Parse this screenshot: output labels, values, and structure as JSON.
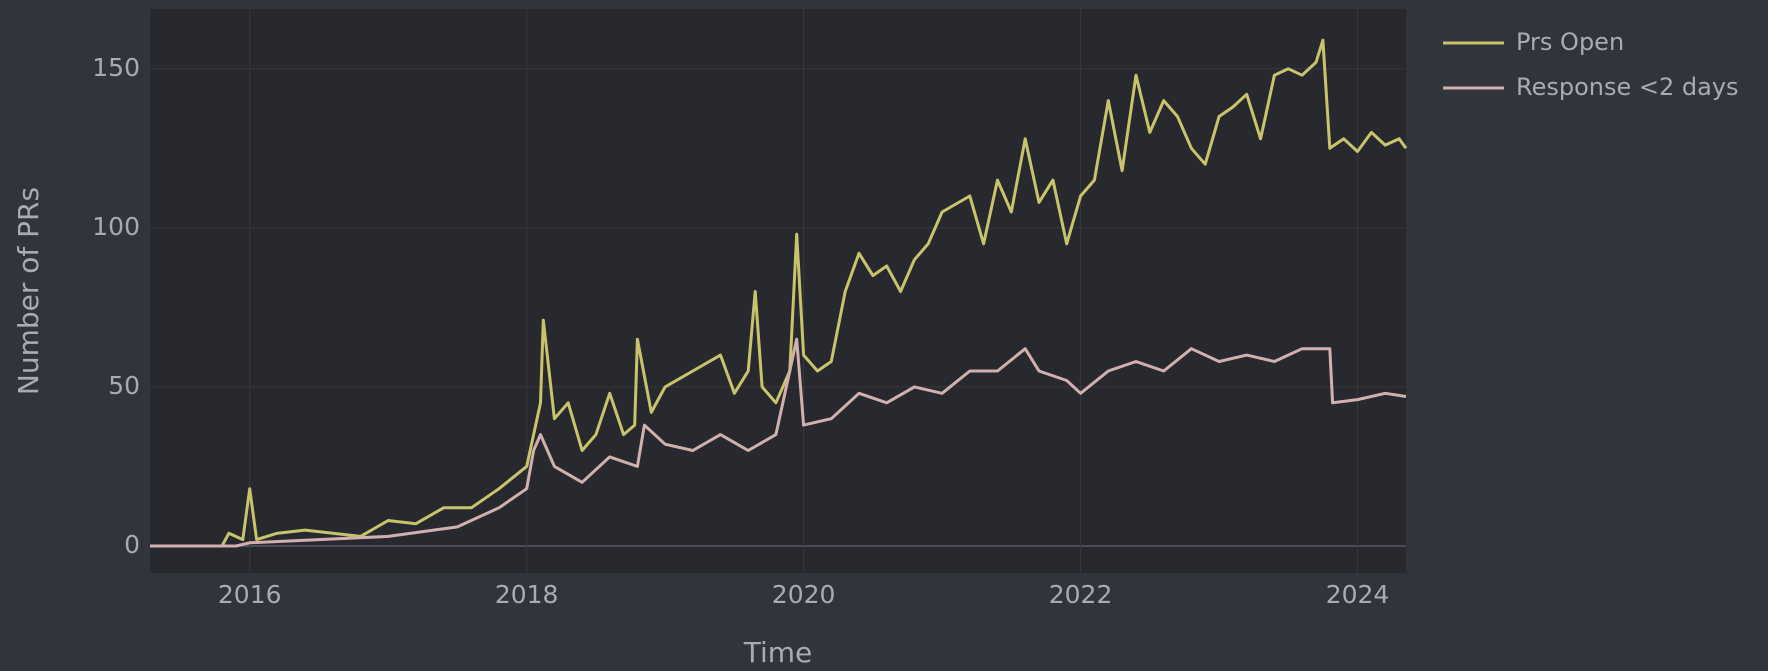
{
  "chart_data": {
    "type": "line",
    "xlabel": "Time",
    "ylabel": "Number of PRs",
    "xlim": [
      2015.28,
      2024.35
    ],
    "xticks": [
      2016,
      2018,
      2020,
      2022,
      2024
    ],
    "ylim": [
      -8.5,
      168.8
    ],
    "yticks": [
      0,
      50,
      100,
      150
    ],
    "grid": true,
    "legend": "outside-right",
    "series": [
      {
        "name": "Prs Open",
        "color": "#c9c36c",
        "x": [
          2015.28,
          2015.8,
          2015.85,
          2015.95,
          2016.0,
          2016.05,
          2016.2,
          2016.4,
          2016.6,
          2016.8,
          2017.0,
          2017.2,
          2017.4,
          2017.6,
          2017.8,
          2018.0,
          2018.1,
          2018.12,
          2018.2,
          2018.3,
          2018.4,
          2018.5,
          2018.6,
          2018.7,
          2018.78,
          2018.8,
          2018.9,
          2019.0,
          2019.2,
          2019.4,
          2019.5,
          2019.6,
          2019.65,
          2019.7,
          2019.8,
          2019.9,
          2019.95,
          2020.0,
          2020.1,
          2020.2,
          2020.3,
          2020.4,
          2020.5,
          2020.6,
          2020.7,
          2020.8,
          2020.9,
          2021.0,
          2021.2,
          2021.3,
          2021.4,
          2021.5,
          2021.6,
          2021.7,
          2021.8,
          2021.9,
          2022.0,
          2022.1,
          2022.2,
          2022.3,
          2022.4,
          2022.5,
          2022.6,
          2022.7,
          2022.8,
          2022.9,
          2023.0,
          2023.1,
          2023.2,
          2023.3,
          2023.4,
          2023.5,
          2023.6,
          2023.7,
          2023.75,
          2023.8,
          2023.9,
          2024.0,
          2024.1,
          2024.2,
          2024.3,
          2024.35
        ],
        "values": [
          0,
          0,
          4,
          2,
          18,
          2,
          4,
          5,
          4,
          3,
          8,
          7,
          12,
          12,
          18,
          25,
          45,
          71,
          40,
          45,
          30,
          35,
          48,
          35,
          38,
          65,
          42,
          50,
          55,
          60,
          48,
          55,
          80,
          50,
          45,
          55,
          98,
          60,
          55,
          58,
          80,
          92,
          85,
          88,
          80,
          90,
          95,
          105,
          110,
          95,
          115,
          105,
          128,
          108,
          115,
          95,
          110,
          115,
          140,
          118,
          148,
          130,
          140,
          135,
          125,
          120,
          135,
          138,
          142,
          128,
          148,
          150,
          148,
          152,
          159,
          125,
          128,
          124,
          130,
          126,
          128,
          125
        ]
      },
      {
        "name": "Response <2 days",
        "color": "#d2b0ae",
        "x": [
          2015.28,
          2015.9,
          2016.0,
          2016.5,
          2017.0,
          2017.5,
          2017.8,
          2018.0,
          2018.05,
          2018.1,
          2018.2,
          2018.4,
          2018.6,
          2018.8,
          2018.85,
          2019.0,
          2019.2,
          2019.4,
          2019.6,
          2019.8,
          2019.95,
          2020.0,
          2020.2,
          2020.4,
          2020.6,
          2020.8,
          2021.0,
          2021.2,
          2021.4,
          2021.6,
          2021.7,
          2021.9,
          2022.0,
          2022.2,
          2022.4,
          2022.6,
          2022.8,
          2023.0,
          2023.2,
          2023.4,
          2023.6,
          2023.8,
          2023.82,
          2024.0,
          2024.2,
          2024.35
        ],
        "values": [
          0,
          0,
          1,
          2,
          3,
          6,
          12,
          18,
          30,
          35,
          25,
          20,
          28,
          25,
          38,
          32,
          30,
          35,
          30,
          35,
          65,
          38,
          40,
          48,
          45,
          50,
          48,
          55,
          55,
          62,
          55,
          52,
          48,
          55,
          58,
          55,
          62,
          58,
          60,
          58,
          62,
          62,
          45,
          46,
          48,
          47
        ]
      }
    ]
  }
}
